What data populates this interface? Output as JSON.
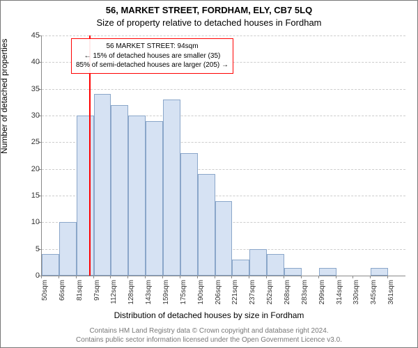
{
  "title_line1": "56, MARKET STREET, FORDHAM, ELY, CB7 5LQ",
  "title_line2": "Size of property relative to detached houses in Fordham",
  "ylabel": "Number of detached properties",
  "xlabel": "Distribution of detached houses by size in Fordham",
  "footer_line1": "Contains HM Land Registry data © Crown copyright and database right 2024.",
  "footer_line2": "Contains public sector information licensed under the Open Government Licence v3.0.",
  "chart": {
    "type": "histogram",
    "ylim": [
      0,
      45
    ],
    "ytick_step": 5,
    "x_categories": [
      "50sqm",
      "66sqm",
      "81sqm",
      "97sqm",
      "112sqm",
      "128sqm",
      "143sqm",
      "159sqm",
      "175sqm",
      "190sqm",
      "206sqm",
      "221sqm",
      "237sqm",
      "252sqm",
      "268sqm",
      "283sqm",
      "299sqm",
      "314sqm",
      "330sqm",
      "345sqm",
      "361sqm"
    ],
    "values": [
      4,
      10,
      30,
      34,
      32,
      30,
      29,
      33,
      23,
      19,
      14,
      3,
      5,
      4,
      1.5,
      0,
      1.5,
      0,
      0,
      1.5,
      0
    ],
    "bar_fill": "#d6e2f3",
    "bar_stroke": "#8aa6c9",
    "background_color": "#ffffff",
    "grid_color": "#cccccc",
    "axis_color": "#888888",
    "marker_value_sqm": 94,
    "marker_color": "#ff0000",
    "label_fontsize": 12,
    "title_fontsize": 13,
    "tick_fontsize": 11
  },
  "annotation": {
    "line1": "56 MARKET STREET: 94sqm",
    "line2": "← 15% of detached houses are smaller (35)",
    "line3": "85% of semi-detached houses are larger (205) →",
    "border_color": "#ff0000",
    "bg_color": "rgba(255,255,255,0.92)"
  }
}
